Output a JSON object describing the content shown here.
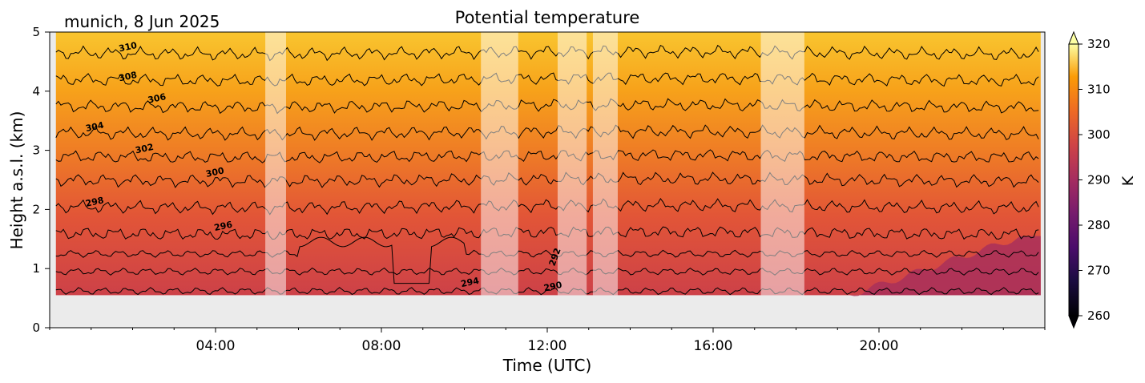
{
  "chart_data": {
    "type": "heatmap",
    "title": "Potential temperature",
    "subtitle": "munich, 8 Jun 2025",
    "xlabel": "Time (UTC)",
    "ylabel": "Height a.s.l. (km)",
    "xlim": [
      0,
      24
    ],
    "ylim": [
      0,
      5
    ],
    "x_ticks": [
      4,
      8,
      12,
      16,
      20
    ],
    "x_tick_labels": [
      "04:00",
      "08:00",
      "12:00",
      "16:00",
      "20:00"
    ],
    "y_ticks": [
      0,
      1,
      2,
      3,
      4,
      5
    ],
    "y_tick_labels": [
      "0",
      "1",
      "2",
      "3",
      "4",
      "5"
    ],
    "colorbar": {
      "label": "K",
      "range": [
        260,
        320
      ],
      "ticks": [
        260,
        270,
        280,
        290,
        300,
        310,
        320
      ],
      "tick_labels": [
        "260",
        "270",
        "280",
        "290",
        "300",
        "310",
        "320"
      ],
      "extend": "both",
      "colormap": "inferno"
    },
    "data_height_range_km": [
      0.55,
      5
    ],
    "data_time_range_h": [
      0.15,
      23.9
    ],
    "missing_color": "#ebebeb",
    "masked_intervals_h": [
      [
        5.2,
        5.7
      ],
      [
        10.4,
        11.3
      ],
      [
        12.25,
        12.95
      ],
      [
        13.1,
        13.7
      ],
      [
        17.15,
        18.2
      ]
    ],
    "contour_levels": [
      290,
      292,
      294,
      296,
      298,
      300,
      302,
      304,
      306,
      308,
      310
    ],
    "contour_heights_km": {
      "296": 1.6,
      "298": 2.05,
      "300": 2.5,
      "302": 2.9,
      "304": 3.3,
      "306": 3.75,
      "308": 4.2,
      "310": 4.65
    },
    "contour_labels": [
      {
        "level": "310",
        "x": 1.9,
        "y": 4.7
      },
      {
        "level": "308",
        "x": 1.9,
        "y": 4.2
      },
      {
        "level": "306",
        "x": 2.6,
        "y": 3.83
      },
      {
        "level": "304",
        "x": 1.1,
        "y": 3.35
      },
      {
        "level": "302",
        "x": 2.3,
        "y": 2.98
      },
      {
        "level": "300",
        "x": 4.0,
        "y": 2.58
      },
      {
        "level": "298",
        "x": 1.1,
        "y": 2.08
      },
      {
        "level": "296",
        "x": 4.2,
        "y": 1.67
      },
      {
        "level": "294",
        "x": 10.15,
        "y": 0.72
      },
      {
        "level": "292",
        "x": 12.25,
        "y": 1.18
      },
      {
        "level": "290",
        "x": 12.15,
        "y": 0.65
      }
    ]
  }
}
